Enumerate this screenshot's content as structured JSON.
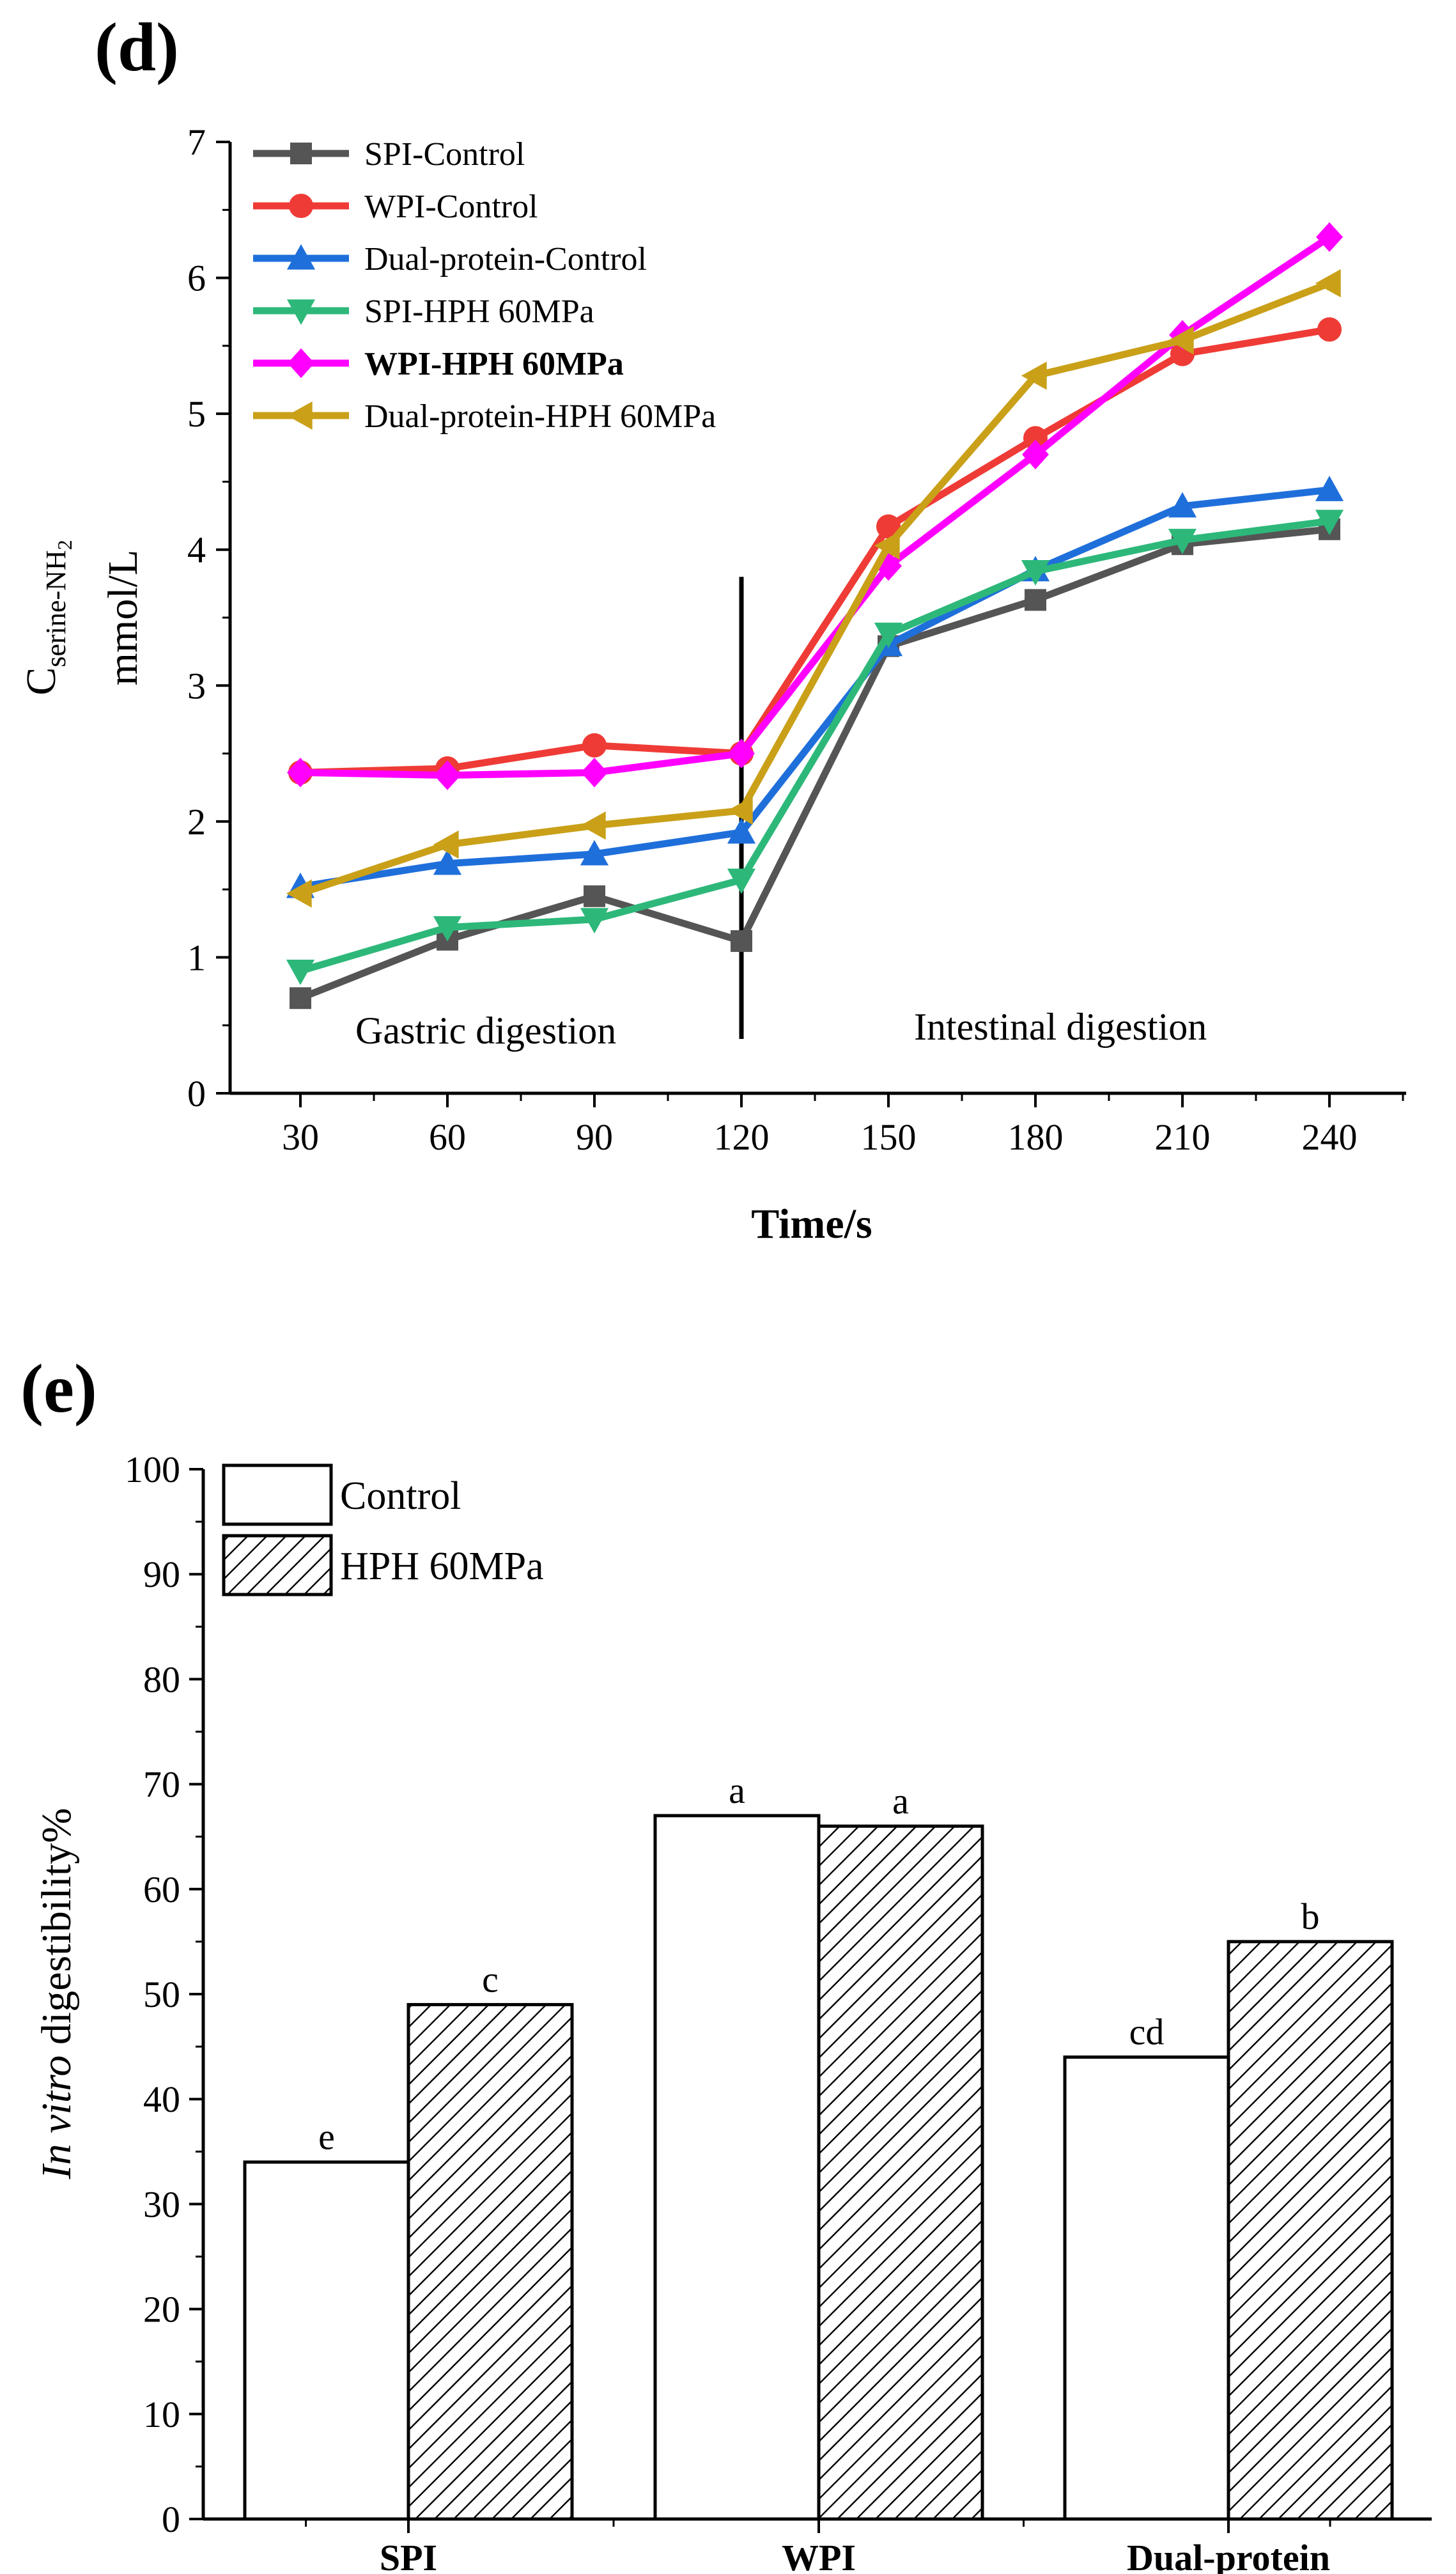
{
  "chart_data": [
    {
      "panel": "(d)",
      "type": "line",
      "x": [
        30,
        60,
        90,
        120,
        150,
        180,
        210,
        240
      ],
      "xlabel": "Time/s",
      "ylabel_main": "C",
      "ylabel_subscript": "serine-NH",
      "ylabel_sub2": "2",
      "ylabel_unit": "mmol/L",
      "ylim": [
        0,
        7
      ],
      "yticks": [
        0,
        1,
        2,
        3,
        4,
        5,
        6,
        7
      ],
      "regions": [
        "Gastric digestion",
        "Intestinal digestion"
      ],
      "divider_x": 120,
      "divider_range": [
        0.4,
        3.8
      ],
      "legend_position": "top-left",
      "series": [
        {
          "name": "SPI-Control",
          "color": "#555555",
          "marker": "square",
          "bold": false,
          "values": [
            0.7,
            1.13,
            1.45,
            1.12,
            3.29,
            3.63,
            4.04,
            4.15
          ]
        },
        {
          "name": "WPI-Control",
          "color": "#ef3b36",
          "marker": "circle",
          "bold": false,
          "values": [
            2.36,
            2.39,
            2.56,
            2.5,
            4.17,
            4.82,
            5.44,
            5.62
          ]
        },
        {
          "name": "Dual-protein-Control",
          "color": "#1f6fdb",
          "marker": "triangle-up",
          "bold": false,
          "values": [
            1.52,
            1.69,
            1.76,
            1.92,
            3.3,
            3.85,
            4.32,
            4.44
          ]
        },
        {
          "name": "SPI-HPH 60MPa",
          "color": "#2db87a",
          "marker": "triangle-down",
          "bold": false,
          "values": [
            0.9,
            1.22,
            1.28,
            1.57,
            3.38,
            3.84,
            4.07,
            4.21
          ]
        },
        {
          "name": "WPI-HPH 60MPa",
          "color": "#ff00ff",
          "marker": "diamond",
          "bold": true,
          "values": [
            2.36,
            2.34,
            2.36,
            2.5,
            3.88,
            4.7,
            5.58,
            6.3
          ]
        },
        {
          "name": "Dual-protein-HPH 60MPa",
          "color": "#c9a018",
          "marker": "triangle-left",
          "bold": false,
          "values": [
            1.47,
            1.83,
            1.97,
            2.08,
            4.03,
            5.28,
            5.54,
            5.96
          ]
        }
      ]
    },
    {
      "panel": "(e)",
      "type": "bar",
      "categories": [
        "SPI",
        "WPI",
        "Dual-protein"
      ],
      "ylabel_italic": "In vitro",
      "ylabel_rest": " digestibility%",
      "ylim": [
        0,
        100
      ],
      "yticks": [
        0,
        10,
        20,
        30,
        40,
        50,
        60,
        70,
        80,
        90,
        100
      ],
      "legend_position": "top-left",
      "series": [
        {
          "name": "Control",
          "pattern": "none",
          "values": [
            34,
            67,
            44
          ],
          "letters": [
            "e",
            "a",
            "cd"
          ]
        },
        {
          "name": "HPH 60MPa",
          "pattern": "hatch",
          "values": [
            49,
            66,
            55
          ],
          "letters": [
            "c",
            "a",
            "b"
          ]
        }
      ]
    }
  ]
}
